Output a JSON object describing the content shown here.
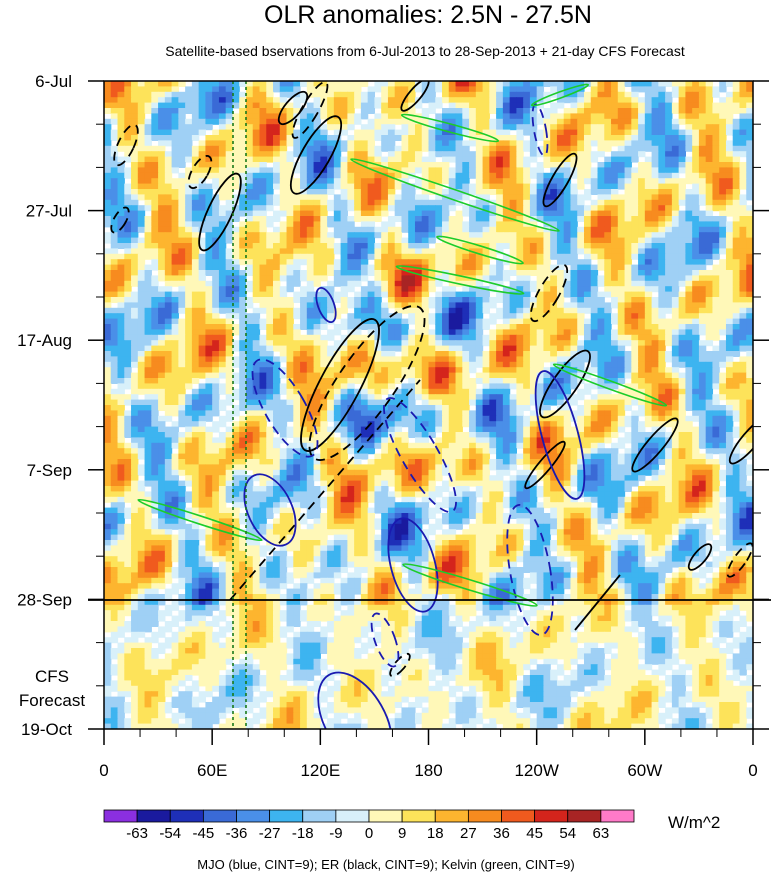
{
  "chart_data": {
    "type": "heatmap",
    "title": "OLR anomalies: 2.5N - 27.5N",
    "subtitle": "Satellite-based bservations from 6-Jul-2013 to 28-Sep-2013 + 21-day CFS Forecast",
    "x_ticks": [
      "0",
      "60E",
      "120E",
      "180",
      "120W",
      "60W",
      "0"
    ],
    "x_values": [
      0,
      60,
      120,
      180,
      240,
      300,
      360
    ],
    "y_ticks": [
      "6-Jul",
      "27-Jul",
      "17-Aug",
      "7-Sep",
      "28-Sep",
      "19-Oct"
    ],
    "y_day_offsets": [
      0,
      21,
      42,
      63,
      84,
      105
    ],
    "forecast_label": [
      "CFS",
      "Forecast"
    ],
    "observation_end": "28-Sep",
    "colorbar": {
      "levels": [
        "-63",
        "-54",
        "-45",
        "-36",
        "-27",
        "-18",
        "-9",
        "0",
        "9",
        "18",
        "27",
        "36",
        "45",
        "54",
        "63"
      ],
      "colors": [
        "#8b2fe0",
        "#1a1a9e",
        "#1e2fb8",
        "#3a6ad6",
        "#4a8fe8",
        "#3db4f0",
        "#9fd0f5",
        "#d8f0fa",
        "#fff8b8",
        "#fde35a",
        "#fdb52f",
        "#f78b1f",
        "#f05a1e",
        "#d4241c",
        "#a82424",
        "#ff7ac8"
      ],
      "units": "W/m^2"
    },
    "footer": "MJO (blue, CINT=9); ER (black, CINT=9); Kelvin (green, CINT=9)",
    "series_colors": {
      "MJO": "#1a1ab0",
      "ER": "#000000",
      "Kelvin": "#1ccc2a"
    }
  }
}
